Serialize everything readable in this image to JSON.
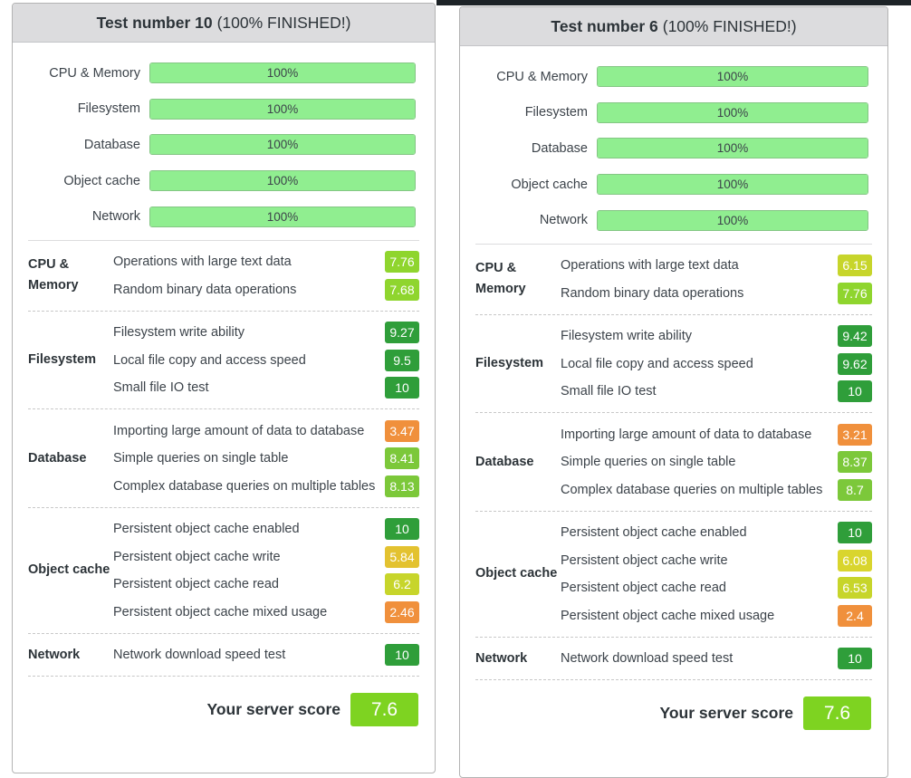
{
  "panels": [
    {
      "title": "Test number 10",
      "status": "(100% FINISHED!)",
      "progress": [
        {
          "label": "CPU & Memory",
          "percent": 100,
          "text": "100%"
        },
        {
          "label": "Filesystem",
          "percent": 100,
          "text": "100%"
        },
        {
          "label": "Database",
          "percent": 100,
          "text": "100%"
        },
        {
          "label": "Object cache",
          "percent": 100,
          "text": "100%"
        },
        {
          "label": "Network",
          "percent": 100,
          "text": "100%"
        }
      ],
      "groups": [
        {
          "name": "CPU & Memory",
          "tests": [
            {
              "name": "Operations with large text data",
              "score": "7.76",
              "color": "#8fd52e"
            },
            {
              "name": "Random binary data operations",
              "score": "7.68",
              "color": "#8fd52e"
            }
          ]
        },
        {
          "name": "Filesystem",
          "tests": [
            {
              "name": "Filesystem write ability",
              "score": "9.27",
              "color": "#2f9e3a"
            },
            {
              "name": "Local file copy and access speed",
              "score": "9.5",
              "color": "#2f9e3a"
            },
            {
              "name": "Small file IO test",
              "score": "10",
              "color": "#2f9e3a"
            }
          ]
        },
        {
          "name": "Database",
          "tests": [
            {
              "name": "Importing large amount of data to database",
              "score": "3.47",
              "color": "#f0903c"
            },
            {
              "name": "Simple queries on single table",
              "score": "8.41",
              "color": "#7cc83a"
            },
            {
              "name": "Complex database queries on multiple tables",
              "score": "8.13",
              "color": "#7cc83a"
            }
          ]
        },
        {
          "name": "Object cache",
          "tests": [
            {
              "name": "Persistent object cache enabled",
              "score": "10",
              "color": "#2f9e3a"
            },
            {
              "name": "Persistent object cache write",
              "score": "5.84",
              "color": "#e3c230"
            },
            {
              "name": "Persistent object cache read",
              "score": "6.2",
              "color": "#c7d52b"
            },
            {
              "name": "Persistent object cache mixed usage",
              "score": "2.46",
              "color": "#f0903c"
            }
          ]
        },
        {
          "name": "Network",
          "tests": [
            {
              "name": "Network download speed test",
              "score": "10",
              "color": "#2f9e3a"
            }
          ]
        }
      ],
      "score_label": "Your server score",
      "score": "7.6"
    },
    {
      "title": "Test number 6",
      "status": "(100% FINISHED!)",
      "progress": [
        {
          "label": "CPU & Memory",
          "percent": 100,
          "text": "100%"
        },
        {
          "label": "Filesystem",
          "percent": 100,
          "text": "100%"
        },
        {
          "label": "Database",
          "percent": 100,
          "text": "100%"
        },
        {
          "label": "Object cache",
          "percent": 100,
          "text": "100%"
        },
        {
          "label": "Network",
          "percent": 100,
          "text": "100%"
        }
      ],
      "groups": [
        {
          "name": "CPU & Memory",
          "tests": [
            {
              "name": "Operations with large text data",
              "score": "6.15",
              "color": "#c7d52b"
            },
            {
              "name": "Random binary data operations",
              "score": "7.76",
              "color": "#8fd52e"
            }
          ]
        },
        {
          "name": "Filesystem",
          "tests": [
            {
              "name": "Filesystem write ability",
              "score": "9.42",
              "color": "#2f9e3a"
            },
            {
              "name": "Local file copy and access speed",
              "score": "9.62",
              "color": "#2f9e3a"
            },
            {
              "name": "Small file IO test",
              "score": "10",
              "color": "#2f9e3a"
            }
          ]
        },
        {
          "name": "Database",
          "tests": [
            {
              "name": "Importing large amount of data to database",
              "score": "3.21",
              "color": "#f0903c"
            },
            {
              "name": "Simple queries on single table",
              "score": "8.37",
              "color": "#7cc83a"
            },
            {
              "name": "Complex database queries on multiple tables",
              "score": "8.7",
              "color": "#7cc83a"
            }
          ]
        },
        {
          "name": "Object cache",
          "tests": [
            {
              "name": "Persistent object cache enabled",
              "score": "10",
              "color": "#2f9e3a"
            },
            {
              "name": "Persistent object cache write",
              "score": "6.08",
              "color": "#d9d52e"
            },
            {
              "name": "Persistent object cache read",
              "score": "6.53",
              "color": "#c7d52b"
            },
            {
              "name": "Persistent object cache mixed usage",
              "score": "2.4",
              "color": "#f0903c"
            }
          ]
        },
        {
          "name": "Network",
          "tests": [
            {
              "name": "Network download speed test",
              "score": "10",
              "color": "#2f9e3a"
            }
          ]
        }
      ],
      "score_label": "Your server score",
      "score": "7.6"
    }
  ]
}
